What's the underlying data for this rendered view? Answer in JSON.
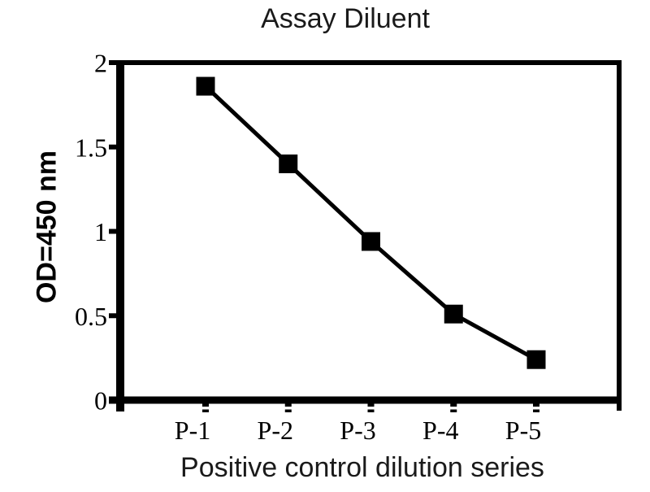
{
  "chart_data": {
    "type": "line",
    "title": "Assay Diluent",
    "xlabel": "Positive control dilution series",
    "ylabel": "OD=450 nm",
    "categories": [
      "P-1",
      "P-2",
      "P-3",
      "P-4",
      "P-5"
    ],
    "series": [
      {
        "values": [
          1.86,
          1.4,
          0.94,
          0.51,
          0.24
        ]
      }
    ],
    "ylim": [
      0,
      2
    ],
    "yticks": [
      0,
      0.5,
      1,
      1.5,
      2
    ],
    "ytick_labels": [
      "0",
      "0.5",
      "1",
      "1.5",
      "2"
    ],
    "marker": "square",
    "marker_color": "#000000",
    "line_color": "#000000",
    "axis_color": "#000000",
    "background": "#ffffff",
    "grid": false,
    "legend": false
  }
}
